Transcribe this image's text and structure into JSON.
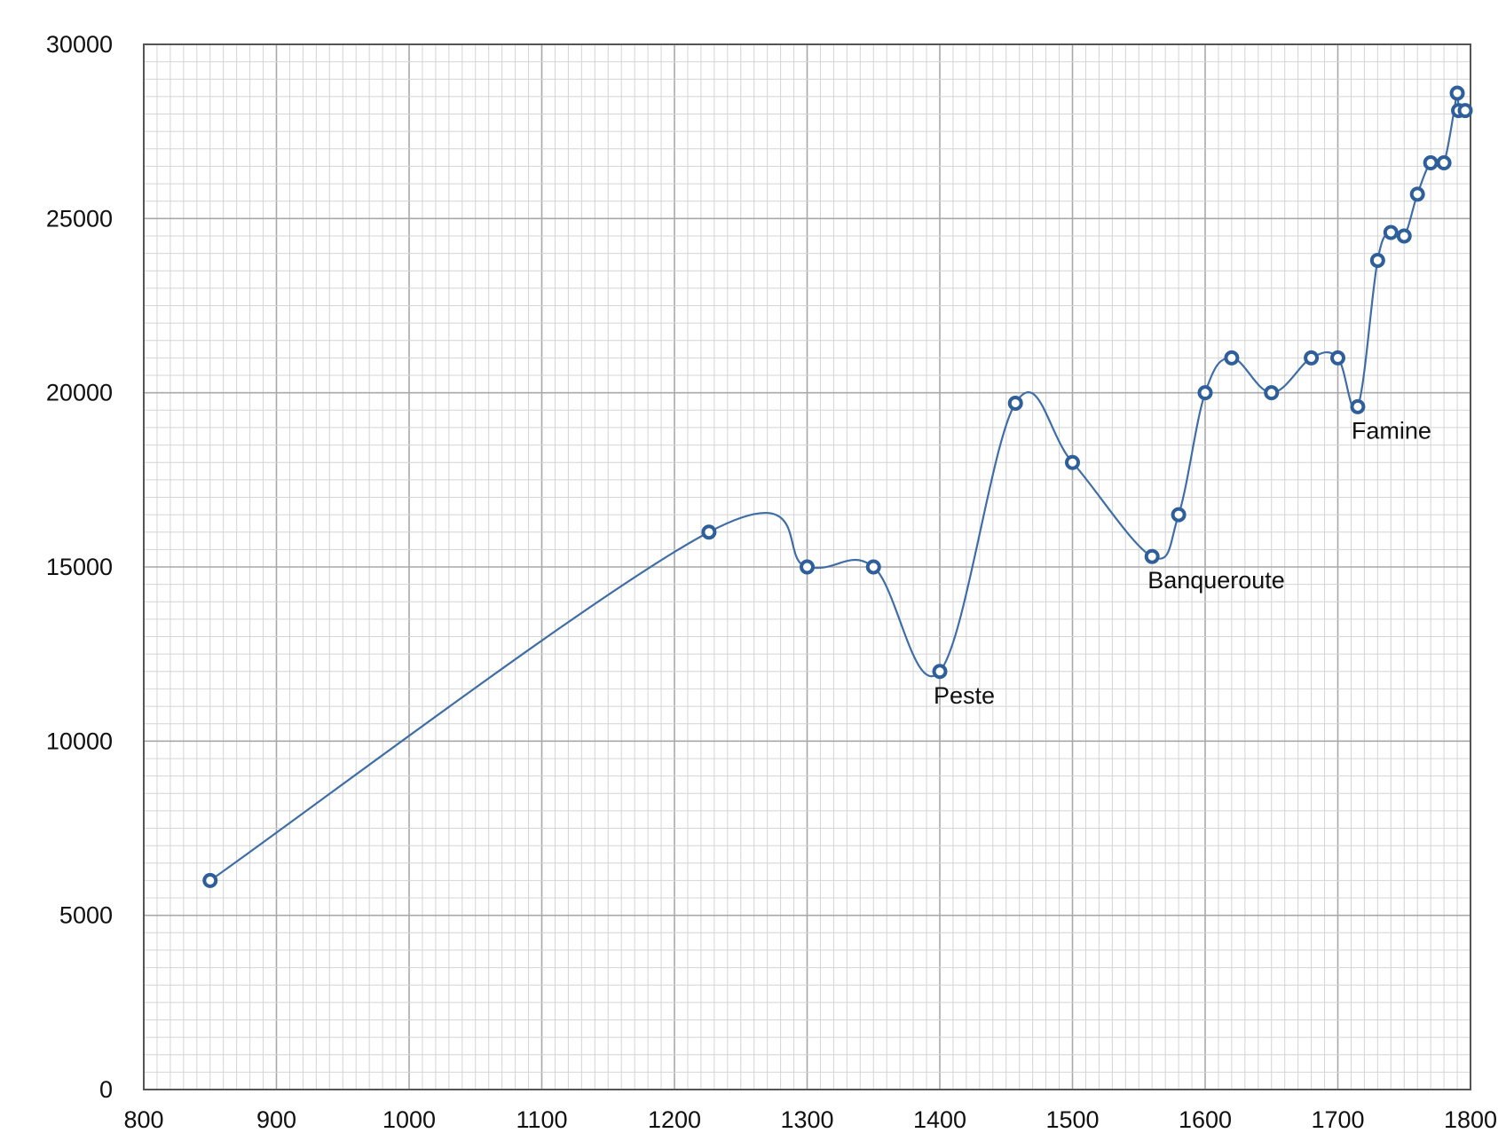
{
  "chart_data": {
    "type": "line",
    "title": "",
    "xlabel": "",
    "ylabel": "",
    "xlim": [
      800,
      1800
    ],
    "ylim": [
      0,
      30000
    ],
    "x_ticks": [
      800,
      900,
      1000,
      1100,
      1200,
      1300,
      1400,
      1500,
      1600,
      1700,
      1800
    ],
    "y_ticks": [
      0,
      5000,
      10000,
      15000,
      20000,
      25000,
      30000
    ],
    "x_tick_labels": [
      "800",
      "900",
      "1000",
      "1100",
      "1200",
      "1300",
      "1400",
      "1500",
      "1600",
      "1700",
      "1800"
    ],
    "y_tick_labels": [
      "0",
      "5000",
      "10000",
      "15000",
      "20000",
      "25000",
      "30000"
    ],
    "grid": true,
    "smoothed": true,
    "line_color": "#3f6ea6",
    "marker_color": "#2f5f9a",
    "series": [
      {
        "x": [
          850,
          1226,
          1300,
          1350,
          1400,
          1457,
          1500,
          1560,
          1580,
          1600,
          1620,
          1650,
          1680,
          1700,
          1715,
          1730,
          1740,
          1750,
          1760,
          1770,
          1780,
          1790,
          1791,
          1796
        ],
        "y": [
          6000,
          16000,
          15000,
          15000,
          12000,
          19700,
          18000,
          15300,
          16500,
          20000,
          21000,
          20000,
          21000,
          21000,
          19600,
          23800,
          24600,
          24500,
          25700,
          26600,
          26600,
          28600,
          28100,
          28100
        ]
      }
    ],
    "annotations": [
      {
        "text": "Peste",
        "x": 1400,
        "y": 12000
      },
      {
        "text": "Banqueroute",
        "x": 1560,
        "y": 15300
      },
      {
        "text": "Famine",
        "x": 1715,
        "y": 19600
      }
    ]
  }
}
